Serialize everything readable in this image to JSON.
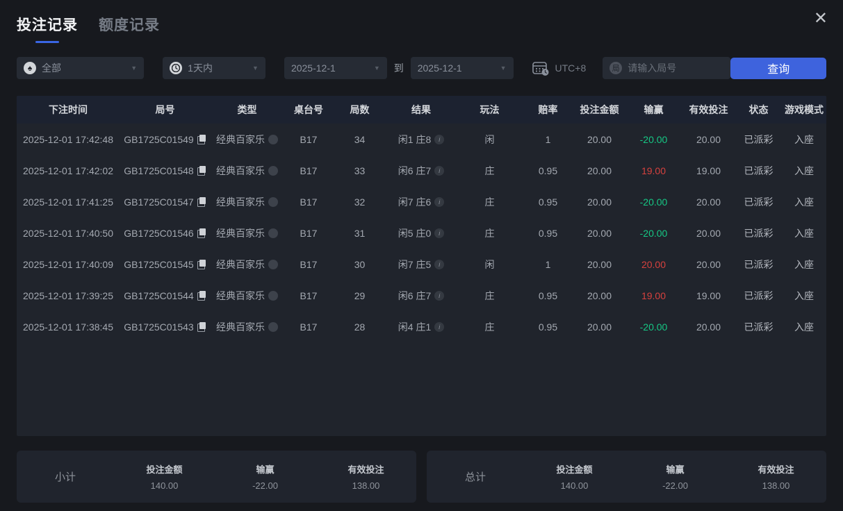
{
  "window": {
    "close_label": "✕"
  },
  "tabs": [
    {
      "label": "投注记录",
      "active": true
    },
    {
      "label": "额度记录",
      "active": false
    }
  ],
  "filters": {
    "game_type_value": "全部",
    "time_range_value": "1天内",
    "date_from": "2025-12-1",
    "to_label": "到",
    "date_to": "2025-12-1",
    "timezone": "UTC+8",
    "round_badge": "局",
    "round_input_placeholder": "请输入局号",
    "search_button": "查询"
  },
  "table": {
    "columns": [
      "下注时间",
      "局号",
      "类型",
      "桌台号",
      "局数",
      "结果",
      "玩法",
      "赔率",
      "投注金额",
      "输赢",
      "有效投注",
      "状态",
      "游戏模式"
    ],
    "rows": [
      {
        "time": "2025-12-01 17:42:48",
        "round_no": "GB1725C01549",
        "type": "经典百家乐",
        "table_no": "B17",
        "round_count": "34",
        "result": "闲1 庄8",
        "play": "闲",
        "odds": "1",
        "bet_amount": "20.00",
        "win_loss": "-20.00",
        "valid_bet": "20.00",
        "status": "已派彩",
        "mode": "入座"
      },
      {
        "time": "2025-12-01 17:42:02",
        "round_no": "GB1725C01548",
        "type": "经典百家乐",
        "table_no": "B17",
        "round_count": "33",
        "result": "闲6 庄7",
        "play": "庄",
        "odds": "0.95",
        "bet_amount": "20.00",
        "win_loss": "19.00",
        "valid_bet": "19.00",
        "status": "已派彩",
        "mode": "入座"
      },
      {
        "time": "2025-12-01 17:41:25",
        "round_no": "GB1725C01547",
        "type": "经典百家乐",
        "table_no": "B17",
        "round_count": "32",
        "result": "闲7 庄6",
        "play": "庄",
        "odds": "0.95",
        "bet_amount": "20.00",
        "win_loss": "-20.00",
        "valid_bet": "20.00",
        "status": "已派彩",
        "mode": "入座"
      },
      {
        "time": "2025-12-01 17:40:50",
        "round_no": "GB1725C01546",
        "type": "经典百家乐",
        "table_no": "B17",
        "round_count": "31",
        "result": "闲5 庄0",
        "play": "庄",
        "odds": "0.95",
        "bet_amount": "20.00",
        "win_loss": "-20.00",
        "valid_bet": "20.00",
        "status": "已派彩",
        "mode": "入座"
      },
      {
        "time": "2025-12-01 17:40:09",
        "round_no": "GB1725C01545",
        "type": "经典百家乐",
        "table_no": "B17",
        "round_count": "30",
        "result": "闲7 庄5",
        "play": "闲",
        "odds": "1",
        "bet_amount": "20.00",
        "win_loss": "20.00",
        "valid_bet": "20.00",
        "status": "已派彩",
        "mode": "入座"
      },
      {
        "time": "2025-12-01 17:39:25",
        "round_no": "GB1725C01544",
        "type": "经典百家乐",
        "table_no": "B17",
        "round_count": "29",
        "result": "闲6 庄7",
        "play": "庄",
        "odds": "0.95",
        "bet_amount": "20.00",
        "win_loss": "19.00",
        "valid_bet": "19.00",
        "status": "已派彩",
        "mode": "入座"
      },
      {
        "time": "2025-12-01 17:38:45",
        "round_no": "GB1725C01543",
        "type": "经典百家乐",
        "table_no": "B17",
        "round_count": "28",
        "result": "闲4 庄1",
        "play": "庄",
        "odds": "0.95",
        "bet_amount": "20.00",
        "win_loss": "-20.00",
        "valid_bet": "20.00",
        "status": "已派彩",
        "mode": "入座"
      }
    ]
  },
  "summary": {
    "subtotal": {
      "label": "小计",
      "bet_amount_label": "投注金额",
      "bet_amount": "140.00",
      "win_loss_label": "输赢",
      "win_loss": "-22.00",
      "valid_bet_label": "有效投注",
      "valid_bet": "138.00"
    },
    "total": {
      "label": "总计",
      "bet_amount_label": "投注金额",
      "bet_amount": "140.00",
      "win_loss_label": "输赢",
      "win_loss": "-22.00",
      "valid_bet_label": "有效投注",
      "valid_bet": "138.00"
    }
  },
  "colors": {
    "accent": "#3e63dd",
    "green": "#16c784",
    "red": "#d6413e"
  }
}
